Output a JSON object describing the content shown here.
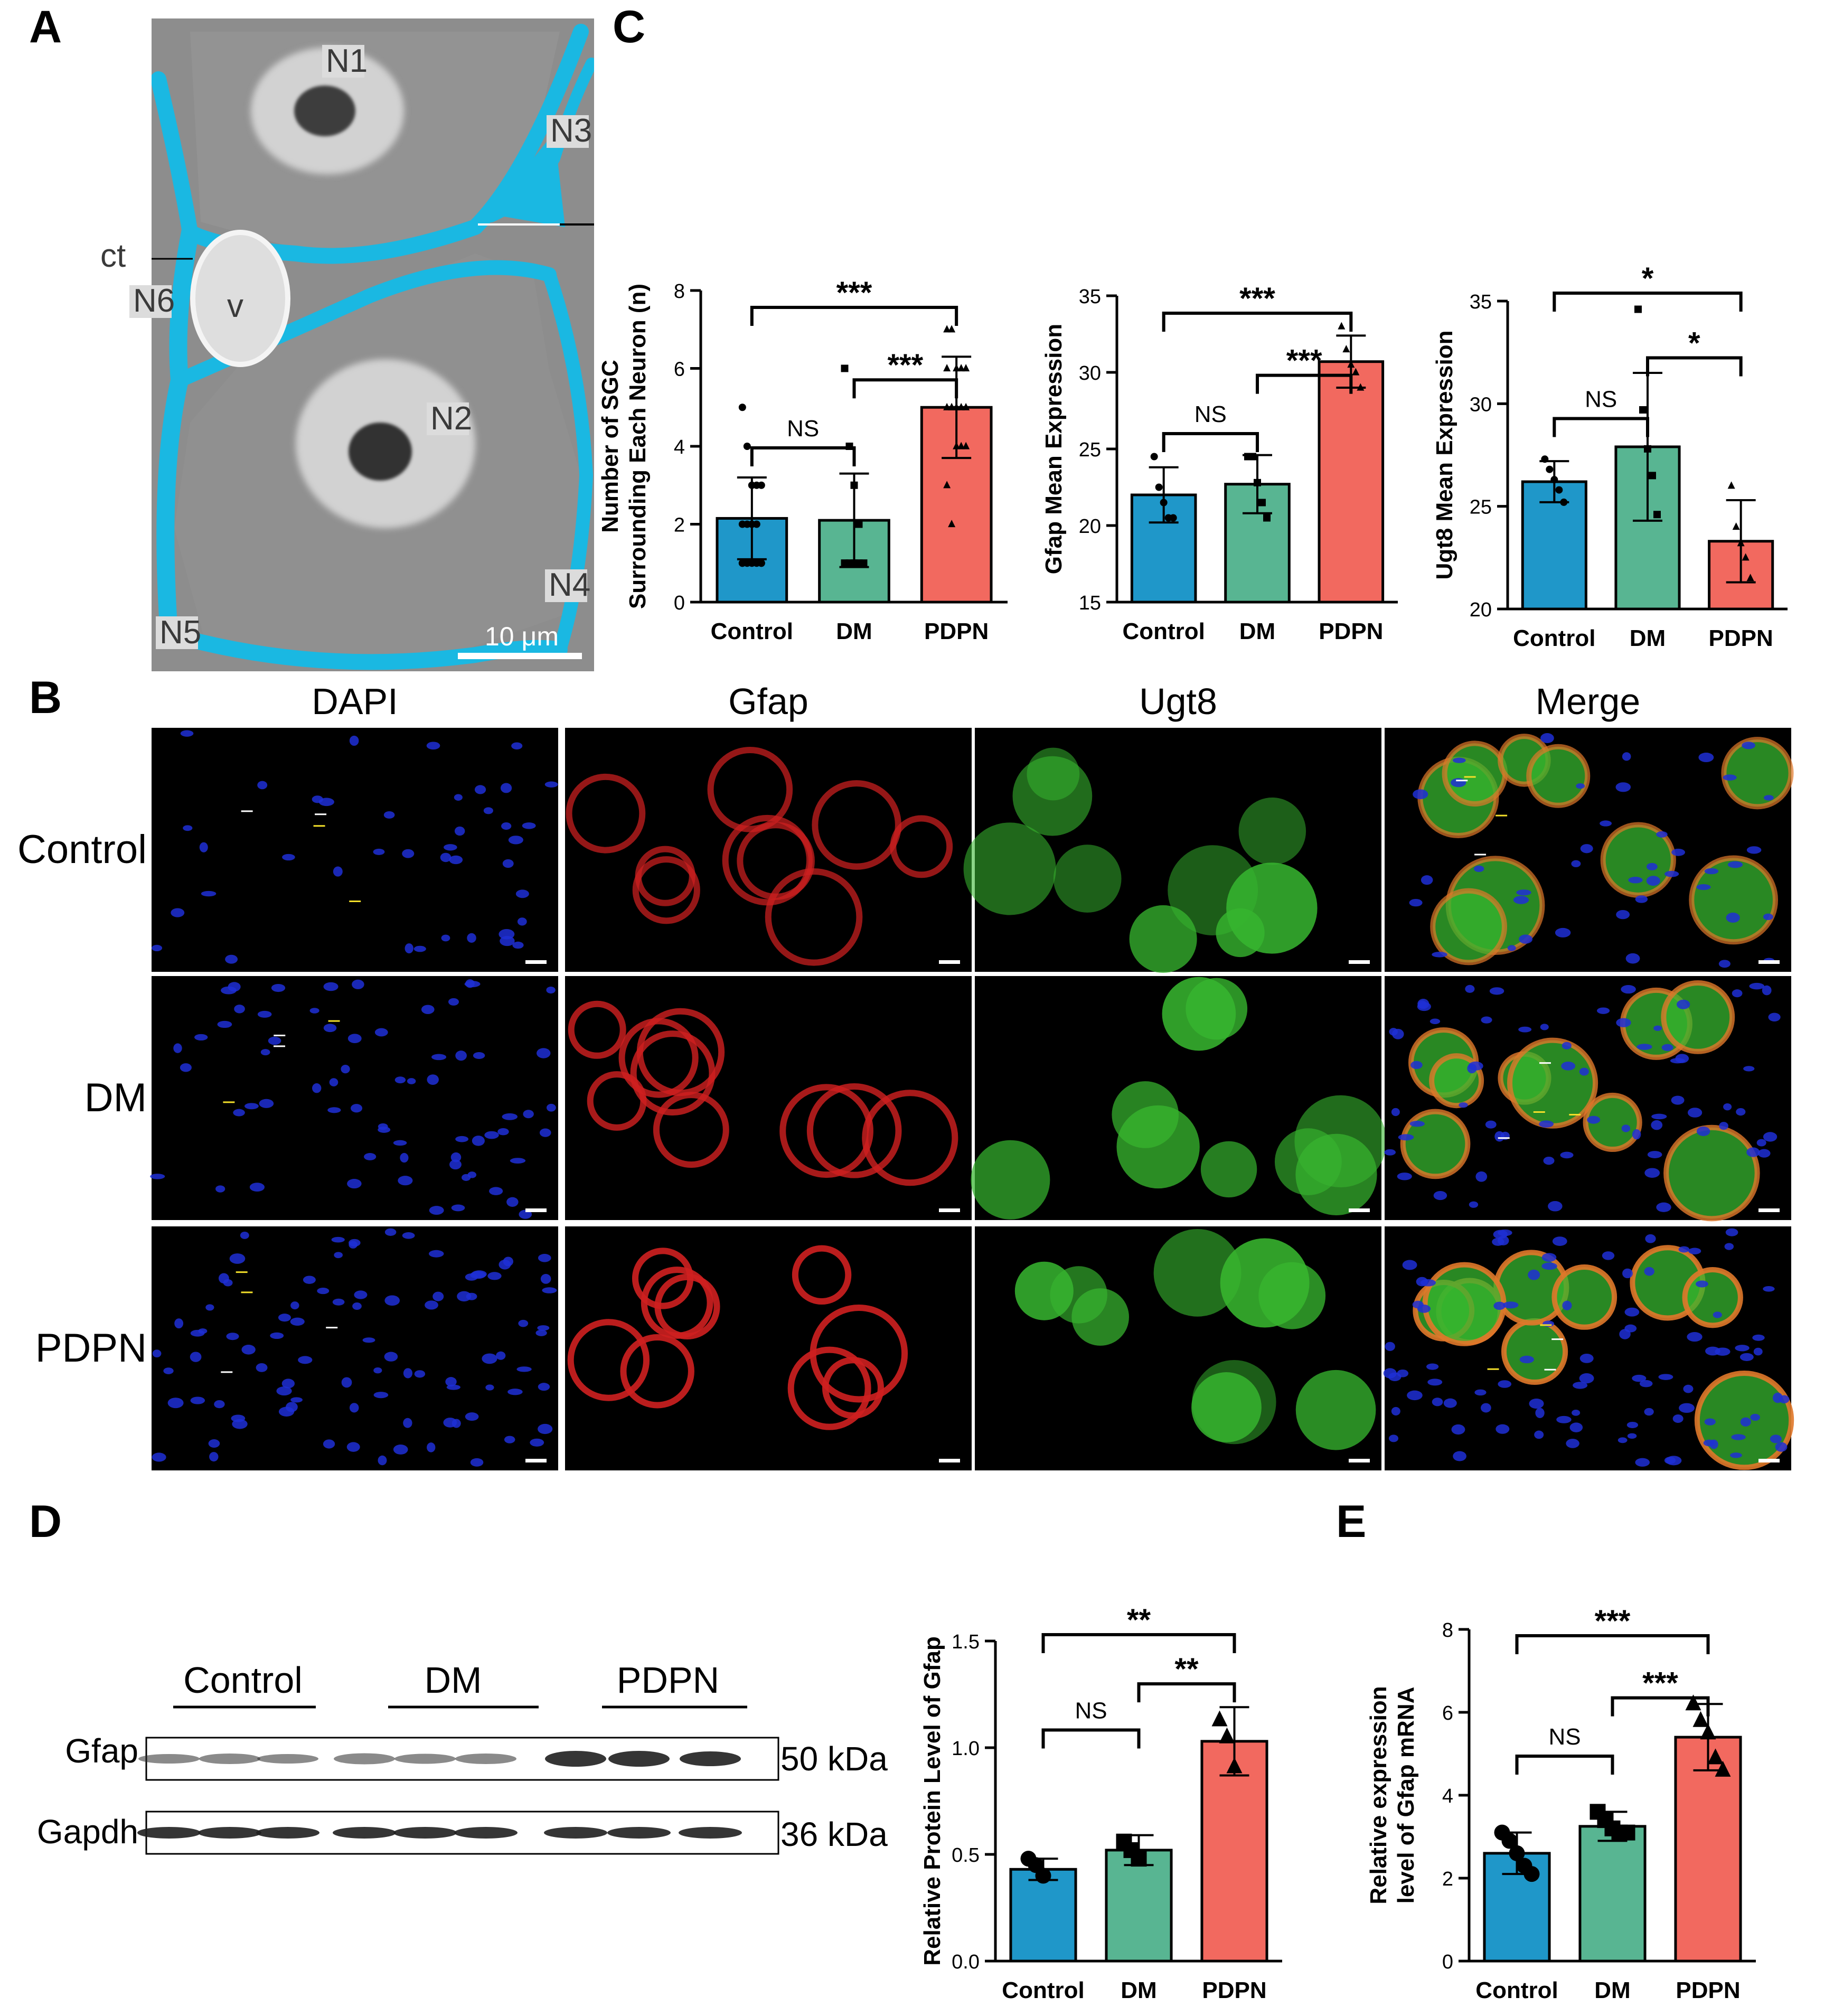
{
  "panels": {
    "a": "A",
    "b": "B",
    "c": "C",
    "d": "D",
    "e": "E"
  },
  "micrograph": {
    "labels": [
      "N1",
      "N2",
      "N3",
      "N4",
      "N5",
      "N6",
      "ct",
      "v"
    ],
    "scale_bar": "10 μm",
    "colors": {
      "sgc": "#1ab8e2",
      "tissue": "#8c8c8c",
      "nucleus": "#d7d7d7"
    }
  },
  "immuno": {
    "columns": [
      "DAPI",
      "Gfap",
      "Ugt8",
      "Merge"
    ],
    "rows": [
      "Control",
      "DM",
      "PDPN"
    ],
    "channel_colors": {
      "DAPI": "#1f2fd6",
      "Gfap": "#cf2020",
      "Ugt8": "#37b52f"
    }
  },
  "blot": {
    "groups": [
      "Control",
      "DM",
      "PDPN"
    ],
    "bands": [
      {
        "name": "Gfap",
        "size": "50 kDa"
      },
      {
        "name": "Gapdh",
        "size": "36 kDa"
      }
    ]
  },
  "colors": {
    "Control": "#1f97c9",
    "DM": "#58b592",
    "PDPN": "#f2695f"
  },
  "chart_data": [
    {
      "id": "c1",
      "type": "bar",
      "categories": [
        "Control",
        "DM",
        "PDPN"
      ],
      "values": [
        2.15,
        2.1,
        5.0
      ],
      "errors": [
        1.05,
        1.2,
        1.3
      ],
      "points": [
        [
          5,
          4,
          3,
          3,
          3,
          2,
          2,
          2,
          2,
          1,
          1,
          1,
          1,
          1,
          1,
          1
        ],
        [
          6,
          4,
          3,
          2,
          1,
          1,
          1,
          1,
          1,
          1,
          1,
          1,
          1,
          1
        ],
        [
          7,
          7,
          6,
          6,
          6,
          6,
          5,
          5,
          5,
          5,
          5,
          5,
          4,
          4,
          4,
          3,
          2
        ]
      ],
      "ylabel": [
        "Number of SGC",
        "Surrounding Each Neuron (n)"
      ],
      "ylim": [
        0,
        8
      ],
      "yticks": [
        0,
        2,
        4,
        6,
        8
      ],
      "comparisons": [
        {
          "from": "DM",
          "to": "PDPN",
          "label": "***",
          "level": 1
        },
        {
          "from": "Control",
          "to": "DM",
          "label": "NS",
          "level": 1
        },
        {
          "from": "Control",
          "to": "PDPN",
          "label": "***",
          "level": 2
        }
      ]
    },
    {
      "id": "c2",
      "type": "bar",
      "categories": [
        "Control",
        "DM",
        "PDPN"
      ],
      "values": [
        22.0,
        22.7,
        30.7
      ],
      "errors": [
        1.8,
        1.9,
        1.7
      ],
      "points": [
        [
          24.5,
          22.5,
          21.5,
          20.5,
          20.5
        ],
        [
          24.5,
          24.5,
          22.8,
          21.5,
          20.5
        ],
        [
          33.0,
          31.5,
          30.5,
          30.0,
          29.0
        ]
      ],
      "ylabel": [
        "Gfap Mean Expression"
      ],
      "ylim": [
        15,
        35
      ],
      "yticks": [
        15,
        20,
        25,
        30,
        35
      ],
      "comparisons": [
        {
          "from": "DM",
          "to": "PDPN",
          "label": "***",
          "level": 1
        },
        {
          "from": "Control",
          "to": "DM",
          "label": "NS",
          "level": 1
        },
        {
          "from": "Control",
          "to": "PDPN",
          "label": "***",
          "level": 2
        }
      ]
    },
    {
      "id": "c3",
      "type": "bar",
      "categories": [
        "Control",
        "DM",
        "PDPN"
      ],
      "values": [
        26.2,
        27.9,
        23.3
      ],
      "errors": [
        1.0,
        3.6,
        2.0
      ],
      "points": [
        [
          27.3,
          26.8,
          26.3,
          25.8,
          25.2
        ],
        [
          34.6,
          29.7,
          27.8,
          26.5,
          24.6
        ],
        [
          26.0,
          24.0,
          23.2,
          22.5,
          21.5
        ]
      ],
      "ylabel": [
        "Ugt8 Mean Expression"
      ],
      "ylim": [
        20,
        35
      ],
      "yticks": [
        20,
        25,
        30,
        35
      ],
      "comparisons": [
        {
          "from": "DM",
          "to": "PDPN",
          "label": "*",
          "level": 1
        },
        {
          "from": "Control",
          "to": "DM",
          "label": "NS",
          "level": 1
        },
        {
          "from": "Control",
          "to": "PDPN",
          "label": "*",
          "level": 2
        }
      ]
    },
    {
      "id": "d",
      "type": "bar",
      "categories": [
        "Control",
        "DM",
        "PDPN"
      ],
      "values": [
        0.43,
        0.52,
        1.03
      ],
      "errors": [
        0.05,
        0.07,
        0.16
      ],
      "points": [
        [
          0.48,
          0.45,
          0.4
        ],
        [
          0.56,
          0.52,
          0.48
        ],
        [
          1.13,
          1.05,
          0.91
        ]
      ],
      "ylabel": [
        "Relative Protein Level of Gfap"
      ],
      "ylim": [
        0.0,
        1.5
      ],
      "yticks": [
        0.0,
        0.5,
        1.0,
        1.5
      ],
      "comparisons": [
        {
          "from": "DM",
          "to": "PDPN",
          "label": "**",
          "level": 1
        },
        {
          "from": "Control",
          "to": "DM",
          "label": "NS",
          "level": 1
        },
        {
          "from": "Control",
          "to": "PDPN",
          "label": "**",
          "level": 2
        }
      ]
    },
    {
      "id": "e",
      "type": "bar",
      "categories": [
        "Control",
        "DM",
        "PDPN"
      ],
      "values": [
        2.6,
        3.25,
        5.4
      ],
      "errors": [
        0.5,
        0.35,
        0.8
      ],
      "points": [
        [
          3.1,
          2.9,
          2.6,
          2.3,
          2.1
        ],
        [
          3.6,
          3.4,
          3.2,
          3.1,
          3.1
        ],
        [
          6.2,
          5.8,
          5.5,
          4.9,
          4.6
        ]
      ],
      "ylabel": [
        "Relative expression",
        "level of Gfap mRNA"
      ],
      "ylim": [
        0,
        8
      ],
      "yticks": [
        0,
        2,
        4,
        6,
        8
      ],
      "comparisons": [
        {
          "from": "DM",
          "to": "PDPN",
          "label": "***",
          "level": 1
        },
        {
          "from": "Control",
          "to": "DM",
          "label": "NS",
          "level": 1
        },
        {
          "from": "Control",
          "to": "PDPN",
          "label": "***",
          "level": 2
        }
      ]
    }
  ]
}
